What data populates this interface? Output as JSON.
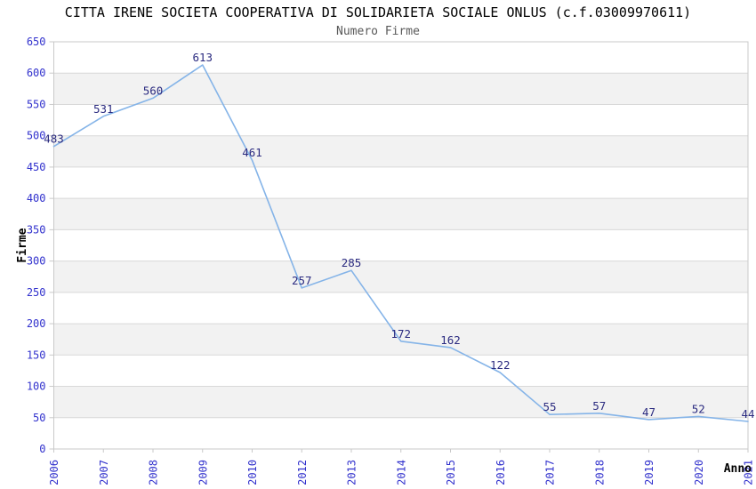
{
  "chart_data": {
    "type": "line",
    "title": "CITTA IRENE SOCIETA COOPERATIVA DI SOLIDARIETA SOCIALE ONLUS (c.f.03009970611)",
    "subtitle": "Numero Firme",
    "xlabel": "Anno",
    "ylabel": "Firme",
    "categories": [
      "2006",
      "2007",
      "2008",
      "2009",
      "2010",
      "2012",
      "2013",
      "2014",
      "2015",
      "2016",
      "2017",
      "2018",
      "2019",
      "2020",
      "2021"
    ],
    "values": [
      483,
      531,
      560,
      613,
      461,
      257,
      285,
      172,
      162,
      122,
      55,
      57,
      47,
      52,
      44
    ],
    "ylim": [
      0,
      650
    ],
    "ytick_step": 50,
    "yticks": [
      0,
      50,
      100,
      150,
      200,
      250,
      300,
      350,
      400,
      450,
      500,
      550,
      600,
      650
    ],
    "grid": "horizontal-bands-alternating",
    "legend": "none",
    "colors": {
      "line": "#85b4e8",
      "data_label": "#2b2b80",
      "tick_label": "#3232cd",
      "title": "#000000",
      "subtitle": "#595959",
      "axis_title": "#000000",
      "band": "#f2f2f2",
      "gridline": "#d8d8d8",
      "border": "#c9c9c9",
      "tick_mark": "#c9c9c9",
      "background": "#ffffff"
    }
  }
}
